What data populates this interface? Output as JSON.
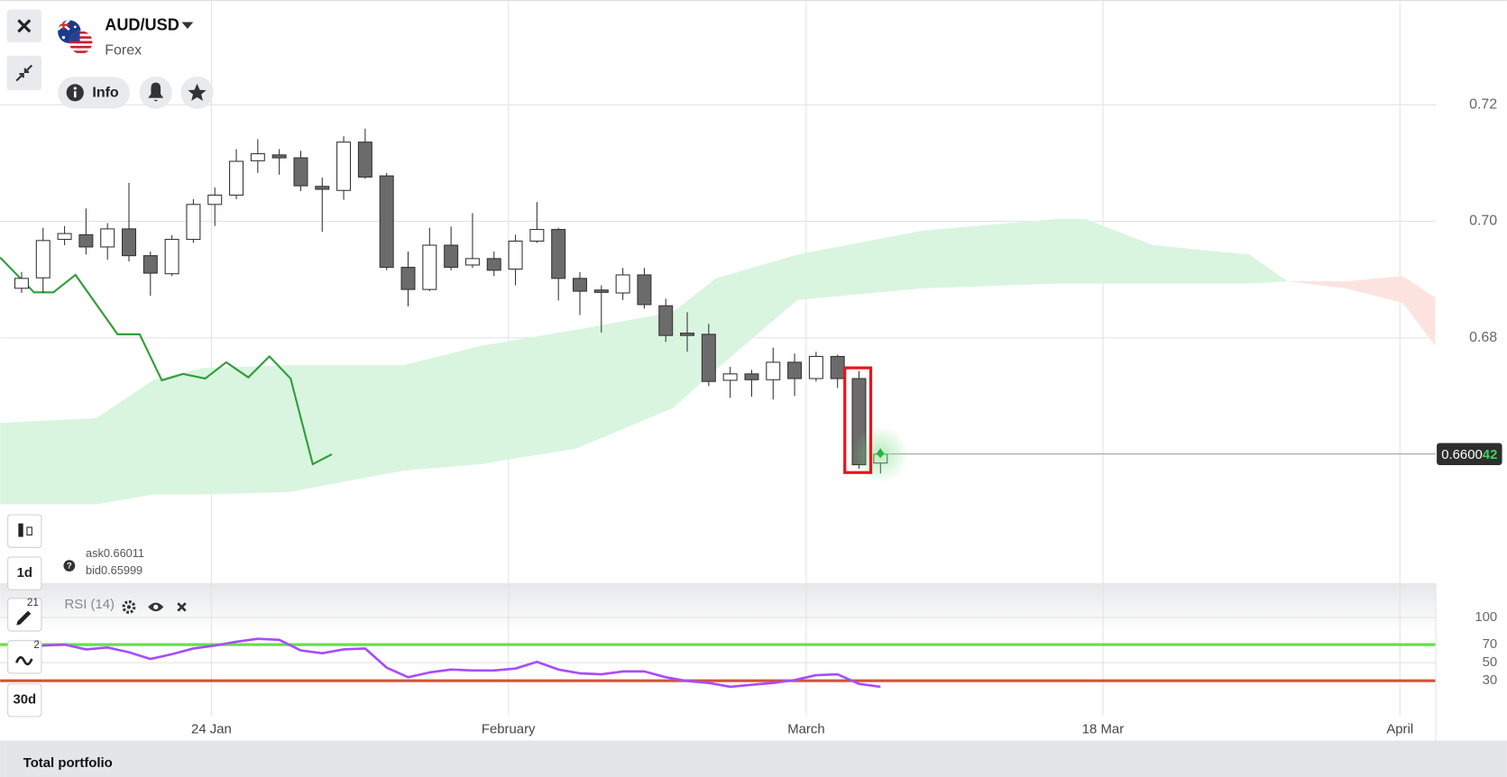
{
  "header": {
    "symbol": "AUD/USD",
    "market": "Forex"
  },
  "buttons": {
    "info": "Info",
    "timeframe": "1d",
    "period": "30d",
    "drawings_badge": "21",
    "indicators_badge": "2"
  },
  "quote": {
    "ask_label": "ask",
    "ask": "0.66011",
    "bid_label": "bid",
    "bid": "0.65999"
  },
  "chart_data": [
    {
      "type": "candlestick",
      "x": [
        0,
        1,
        2,
        3,
        4,
        5,
        6,
        7,
        8,
        9,
        10,
        11,
        12,
        13,
        14,
        15,
        16,
        17,
        18,
        19,
        20,
        21,
        22,
        23,
        24,
        25,
        26,
        27,
        28,
        29,
        30,
        31,
        32,
        33,
        34,
        35,
        36,
        37,
        38,
        39,
        40
      ],
      "open": [
        0.6885,
        0.6903,
        0.6969,
        0.6977,
        0.6956,
        0.6987,
        0.6941,
        0.691,
        0.6969,
        0.7029,
        0.7045,
        0.7104,
        0.7114,
        0.7109,
        0.706,
        0.7053,
        0.7136,
        0.7078,
        0.6921,
        0.6883,
        0.6959,
        0.6925,
        0.6936,
        0.6918,
        0.6966,
        0.6986,
        0.6902,
        0.6882,
        0.6877,
        0.6908,
        0.6855,
        0.6808,
        0.6806,
        0.6727,
        0.6738,
        0.6728,
        0.6758,
        0.673,
        0.6768,
        0.673,
        0.6585
      ],
      "high": [
        0.6913,
        0.6989,
        0.6992,
        0.7022,
        0.6997,
        0.7066,
        0.6948,
        0.6976,
        0.7038,
        0.7058,
        0.7124,
        0.7141,
        0.7124,
        0.7121,
        0.7075,
        0.7146,
        0.7159,
        0.7083,
        0.6948,
        0.6989,
        0.6991,
        0.7014,
        0.6948,
        0.6977,
        0.7033,
        0.6989,
        0.6913,
        0.689,
        0.692,
        0.692,
        0.6867,
        0.6844,
        0.6824,
        0.675,
        0.6745,
        0.6783,
        0.6773,
        0.6776,
        0.6771,
        0.6743,
        0.661
      ],
      "low": [
        0.6877,
        0.6877,
        0.6959,
        0.6943,
        0.6934,
        0.6931,
        0.6872,
        0.6906,
        0.6963,
        0.6992,
        0.7038,
        0.7083,
        0.708,
        0.7052,
        0.6982,
        0.7037,
        0.7073,
        0.6916,
        0.6854,
        0.688,
        0.6916,
        0.692,
        0.6906,
        0.689,
        0.6963,
        0.6864,
        0.6839,
        0.6809,
        0.6865,
        0.685,
        0.6793,
        0.6776,
        0.6717,
        0.6697,
        0.6699,
        0.6694,
        0.67,
        0.6725,
        0.6714,
        0.6575,
        0.6567
      ],
      "close": [
        0.6902,
        0.6967,
        0.6979,
        0.6956,
        0.6987,
        0.6941,
        0.6911,
        0.6969,
        0.7029,
        0.7045,
        0.7103,
        0.7116,
        0.7109,
        0.7061,
        0.7055,
        0.7136,
        0.7076,
        0.6921,
        0.6883,
        0.6959,
        0.6921,
        0.6936,
        0.6916,
        0.6966,
        0.6986,
        0.6902,
        0.688,
        0.6878,
        0.6908,
        0.6857,
        0.6804,
        0.6804,
        0.6725,
        0.6738,
        0.6728,
        0.6758,
        0.673,
        0.6768,
        0.673,
        0.6582,
        0.66
      ],
      "up_color": "#ffffff",
      "down_color": "#6b6b6b",
      "xlim": [
        -1,
        65.86
      ],
      "xticks": [
        {
          "value": 8.84,
          "label": "24 Jan"
        },
        {
          "value": 22.67,
          "label": "February"
        },
        {
          "value": 36.54,
          "label": "March"
        },
        {
          "value": 50.36,
          "label": "18 Mar"
        },
        {
          "value": 64.19,
          "label": "April"
        }
      ],
      "ylim": [
        0.6379,
        0.738
      ],
      "yticks": [
        0.72,
        {
          "value": 0.7,
          "label": "0.70"
        },
        0.68
      ],
      "grid": true,
      "last_price": 0.660042,
      "last_price_label": [
        "0.6600",
        "42"
      ],
      "lagging_line": {
        "x": [
          -1,
          0.58,
          1.48,
          2.51,
          4.47,
          5.5,
          6.53,
          7.52,
          8.55,
          9.53,
          10.56,
          11.54,
          12.53,
          13.56,
          14.45
        ],
        "values": [
          0.6938,
          0.6878,
          0.6878,
          0.6908,
          0.6806,
          0.6806,
          0.6727,
          0.6738,
          0.673,
          0.6758,
          0.6732,
          0.6768,
          0.673,
          0.6583,
          0.66
        ],
        "color": "#2f9e3a"
      },
      "cloud": [
        {
          "x": [
            -1,
            3.47,
            6.16,
            8.4,
            12.42,
            17.79,
            21.37,
            25.85,
            30.32,
            32.33,
            36.14,
            41.95,
            48.22,
            49.56,
            52.7,
            57.17,
            58.96
          ],
          "upper": [
            0.6654,
            0.6662,
            0.6728,
            0.6748,
            0.6753,
            0.6753,
            0.6786,
            0.6814,
            0.6844,
            0.6902,
            0.6943,
            0.6984,
            0.7004,
            0.7004,
            0.6959,
            0.6943,
            0.6897
          ],
          "lower": [
            0.6514,
            0.6514,
            0.6531,
            0.6531,
            0.6535,
            0.6572,
            0.6583,
            0.661,
            0.6679,
            0.6745,
            0.6865,
            0.6885,
            0.6893,
            0.6893,
            0.6893,
            0.6893,
            0.6897
          ],
          "color": "#d9f5e0"
        },
        {
          "x": [
            58.96,
            61.64,
            64.32,
            65.84
          ],
          "upper": [
            0.6897,
            0.6897,
            0.6906,
            0.6869
          ],
          "lower": [
            0.6897,
            0.6885,
            0.686,
            0.6786
          ],
          "color": "#fde3e0"
        }
      ]
    },
    {
      "type": "line",
      "title": "RSI (14)",
      "x": [
        0,
        1,
        2,
        3,
        4,
        5,
        6,
        7,
        8,
        9,
        10,
        11,
        12,
        13,
        14,
        15,
        16,
        17,
        18,
        19,
        20,
        21,
        22,
        23,
        24,
        25,
        26,
        27,
        28,
        29,
        30,
        31,
        32,
        33,
        34,
        35,
        36,
        37,
        38,
        39,
        40
      ],
      "values": [
        64.7,
        68.9,
        70.0,
        64.7,
        66.8,
        61.5,
        54.1,
        59.4,
        65.7,
        68.9,
        73.2,
        76.4,
        75.3,
        63.6,
        60.4,
        64.7,
        65.7,
        44.5,
        33.9,
        39.2,
        42.4,
        41.4,
        41.4,
        43.5,
        50.9,
        42.4,
        38.2,
        37.1,
        40.3,
        40.3,
        33.9,
        29.7,
        27.6,
        23.3,
        25.5,
        27.6,
        30.8,
        36.1,
        37.1,
        26.5,
        23.3
      ],
      "color": "#a64dff",
      "xlim": [
        -1,
        65.86
      ],
      "ylim": [
        -8.5,
        131.8
      ],
      "yticks": [
        100,
        70,
        50,
        30
      ],
      "levels": [
        {
          "value": 70,
          "color": "#66e04a"
        },
        {
          "value": 30,
          "color": "#d9503a"
        }
      ]
    }
  ],
  "footer": {
    "title": "Total portfolio"
  }
}
